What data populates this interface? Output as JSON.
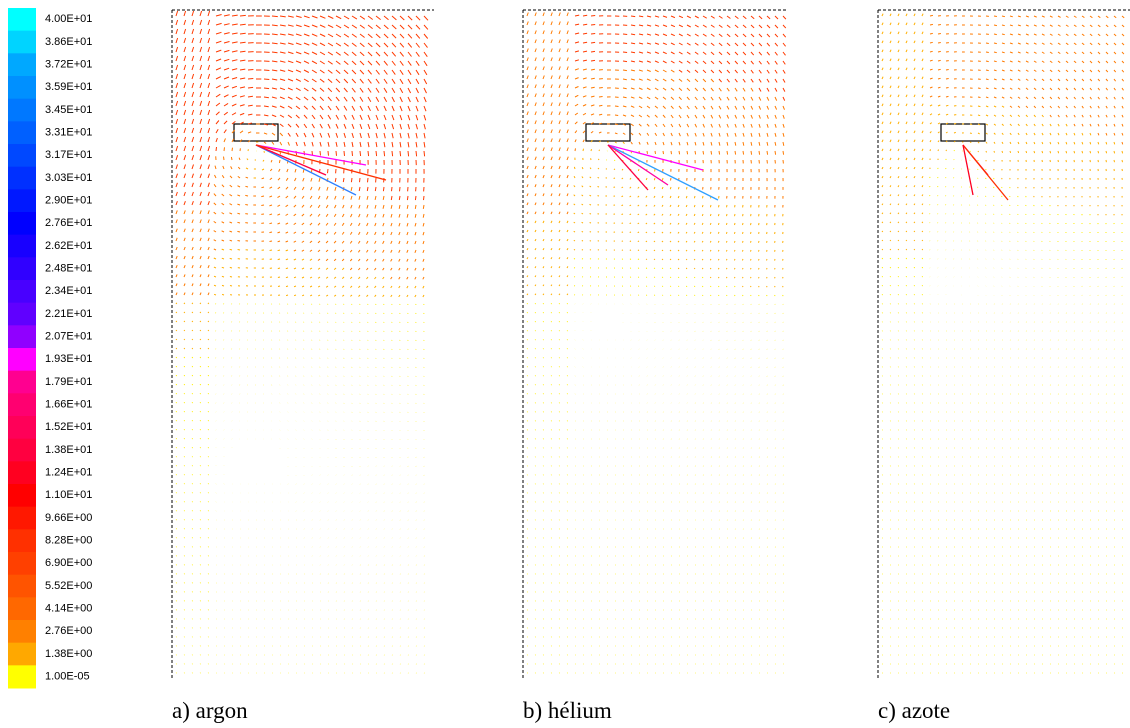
{
  "colorbar": {
    "labels": [
      "4.00E+01",
      "3.86E+01",
      "3.72E+01",
      "3.59E+01",
      "3.45E+01",
      "3.31E+01",
      "3.17E+01",
      "3.03E+01",
      "2.90E+01",
      "2.76E+01",
      "2.62E+01",
      "2.48E+01",
      "2.34E+01",
      "2.21E+01",
      "2.07E+01",
      "1.93E+01",
      "1.79E+01",
      "1.66E+01",
      "1.52E+01",
      "1.38E+01",
      "1.24E+01",
      "1.10E+01",
      "9.66E+00",
      "8.28E+00",
      "6.90E+00",
      "5.52E+00",
      "4.14E+00",
      "2.76E+00",
      "1.38E+00",
      "1.00E-05"
    ],
    "colors": [
      "#00ffff",
      "#00d4ff",
      "#00a8ff",
      "#0090ff",
      "#0078ff",
      "#0060ff",
      "#0048ff",
      "#0030ff",
      "#0018ff",
      "#0000ff",
      "#1800ff",
      "#3000ff",
      "#4800ff",
      "#6000ff",
      "#9000ff",
      "#ff00ff",
      "#ff0090",
      "#ff0070",
      "#ff0058",
      "#ff0040",
      "#ff0020",
      "#ff0000",
      "#ff1800",
      "#ff3000",
      "#ff4000",
      "#ff5400",
      "#ff6800",
      "#ff8000",
      "#ffa800",
      "#ffff00"
    ]
  },
  "panels": [
    {
      "caption": "a) argon"
    },
    {
      "caption": "b) hélium"
    },
    {
      "caption": "c) azote"
    }
  ]
}
